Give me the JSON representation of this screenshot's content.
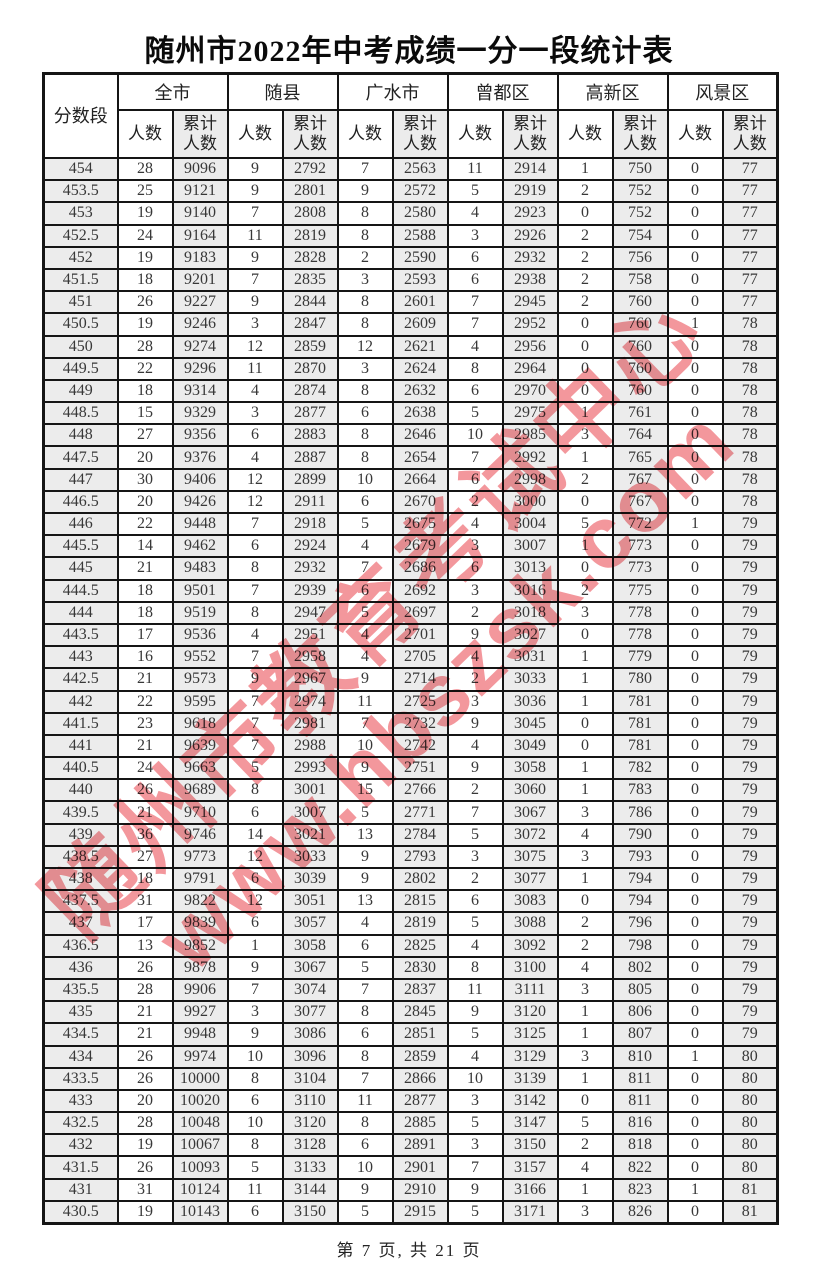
{
  "title": "随州市2022年中考成绩一分一段统计表",
  "footer": "第 7 页, 共 21 页",
  "watermark": {
    "line1": "随州市教育考试中心",
    "line2": "www.hbszsk.com",
    "color": "#ee6e76"
  },
  "table": {
    "score_header": "分数段",
    "count_header": "人数",
    "cum_header": "累计人数",
    "regions": [
      {
        "label": "全市"
      },
      {
        "label": "随县"
      },
      {
        "label": "广水市"
      },
      {
        "label": "曾都区"
      },
      {
        "label": "高新区"
      },
      {
        "label": "风景区"
      }
    ],
    "rows": [
      [
        "454",
        28,
        9096,
        9,
        2792,
        7,
        2563,
        11,
        2914,
        1,
        750,
        0,
        77
      ],
      [
        "453.5",
        25,
        9121,
        9,
        2801,
        9,
        2572,
        5,
        2919,
        2,
        752,
        0,
        77
      ],
      [
        "453",
        19,
        9140,
        7,
        2808,
        8,
        2580,
        4,
        2923,
        0,
        752,
        0,
        77
      ],
      [
        "452.5",
        24,
        9164,
        11,
        2819,
        8,
        2588,
        3,
        2926,
        2,
        754,
        0,
        77
      ],
      [
        "452",
        19,
        9183,
        9,
        2828,
        2,
        2590,
        6,
        2932,
        2,
        756,
        0,
        77
      ],
      [
        "451.5",
        18,
        9201,
        7,
        2835,
        3,
        2593,
        6,
        2938,
        2,
        758,
        0,
        77
      ],
      [
        "451",
        26,
        9227,
        9,
        2844,
        8,
        2601,
        7,
        2945,
        2,
        760,
        0,
        77
      ],
      [
        "450.5",
        19,
        9246,
        3,
        2847,
        8,
        2609,
        7,
        2952,
        0,
        760,
        1,
        78
      ],
      [
        "450",
        28,
        9274,
        12,
        2859,
        12,
        2621,
        4,
        2956,
        0,
        760,
        0,
        78
      ],
      [
        "449.5",
        22,
        9296,
        11,
        2870,
        3,
        2624,
        8,
        2964,
        0,
        760,
        0,
        78
      ],
      [
        "449",
        18,
        9314,
        4,
        2874,
        8,
        2632,
        6,
        2970,
        0,
        760,
        0,
        78
      ],
      [
        "448.5",
        15,
        9329,
        3,
        2877,
        6,
        2638,
        5,
        2975,
        1,
        761,
        0,
        78
      ],
      [
        "448",
        27,
        9356,
        6,
        2883,
        8,
        2646,
        10,
        2985,
        3,
        764,
        0,
        78
      ],
      [
        "447.5",
        20,
        9376,
        4,
        2887,
        8,
        2654,
        7,
        2992,
        1,
        765,
        0,
        78
      ],
      [
        "447",
        30,
        9406,
        12,
        2899,
        10,
        2664,
        6,
        2998,
        2,
        767,
        0,
        78
      ],
      [
        "446.5",
        20,
        9426,
        12,
        2911,
        6,
        2670,
        2,
        3000,
        0,
        767,
        0,
        78
      ],
      [
        "446",
        22,
        9448,
        7,
        2918,
        5,
        2675,
        4,
        3004,
        5,
        772,
        1,
        79
      ],
      [
        "445.5",
        14,
        9462,
        6,
        2924,
        4,
        2679,
        3,
        3007,
        1,
        773,
        0,
        79
      ],
      [
        "445",
        21,
        9483,
        8,
        2932,
        7,
        2686,
        6,
        3013,
        0,
        773,
        0,
        79
      ],
      [
        "444.5",
        18,
        9501,
        7,
        2939,
        6,
        2692,
        3,
        3016,
        2,
        775,
        0,
        79
      ],
      [
        "444",
        18,
        9519,
        8,
        2947,
        5,
        2697,
        2,
        3018,
        3,
        778,
        0,
        79
      ],
      [
        "443.5",
        17,
        9536,
        4,
        2951,
        4,
        2701,
        9,
        3027,
        0,
        778,
        0,
        79
      ],
      [
        "443",
        16,
        9552,
        7,
        2958,
        4,
        2705,
        4,
        3031,
        1,
        779,
        0,
        79
      ],
      [
        "442.5",
        21,
        9573,
        9,
        2967,
        9,
        2714,
        2,
        3033,
        1,
        780,
        0,
        79
      ],
      [
        "442",
        22,
        9595,
        7,
        2974,
        11,
        2725,
        3,
        3036,
        1,
        781,
        0,
        79
      ],
      [
        "441.5",
        23,
        9618,
        7,
        2981,
        7,
        2732,
        9,
        3045,
        0,
        781,
        0,
        79
      ],
      [
        "441",
        21,
        9639,
        7,
        2988,
        10,
        2742,
        4,
        3049,
        0,
        781,
        0,
        79
      ],
      [
        "440.5",
        24,
        9663,
        5,
        2993,
        9,
        2751,
        9,
        3058,
        1,
        782,
        0,
        79
      ],
      [
        "440",
        26,
        9689,
        8,
        3001,
        15,
        2766,
        2,
        3060,
        1,
        783,
        0,
        79
      ],
      [
        "439.5",
        21,
        9710,
        6,
        3007,
        5,
        2771,
        7,
        3067,
        3,
        786,
        0,
        79
      ],
      [
        "439",
        36,
        9746,
        14,
        3021,
        13,
        2784,
        5,
        3072,
        4,
        790,
        0,
        79
      ],
      [
        "438.5",
        27,
        9773,
        12,
        3033,
        9,
        2793,
        3,
        3075,
        3,
        793,
        0,
        79
      ],
      [
        "438",
        18,
        9791,
        6,
        3039,
        9,
        2802,
        2,
        3077,
        1,
        794,
        0,
        79
      ],
      [
        "437.5",
        31,
        9822,
        12,
        3051,
        13,
        2815,
        6,
        3083,
        0,
        794,
        0,
        79
      ],
      [
        "437",
        17,
        9839,
        6,
        3057,
        4,
        2819,
        5,
        3088,
        2,
        796,
        0,
        79
      ],
      [
        "436.5",
        13,
        9852,
        1,
        3058,
        6,
        2825,
        4,
        3092,
        2,
        798,
        0,
        79
      ],
      [
        "436",
        26,
        9878,
        9,
        3067,
        5,
        2830,
        8,
        3100,
        4,
        802,
        0,
        79
      ],
      [
        "435.5",
        28,
        9906,
        7,
        3074,
        7,
        2837,
        11,
        3111,
        3,
        805,
        0,
        79
      ],
      [
        "435",
        21,
        9927,
        3,
        3077,
        8,
        2845,
        9,
        3120,
        1,
        806,
        0,
        79
      ],
      [
        "434.5",
        21,
        9948,
        9,
        3086,
        6,
        2851,
        5,
        3125,
        1,
        807,
        0,
        79
      ],
      [
        "434",
        26,
        9974,
        10,
        3096,
        8,
        2859,
        4,
        3129,
        3,
        810,
        1,
        80
      ],
      [
        "433.5",
        26,
        10000,
        8,
        3104,
        7,
        2866,
        10,
        3139,
        1,
        811,
        0,
        80
      ],
      [
        "433",
        20,
        10020,
        6,
        3110,
        11,
        2877,
        3,
        3142,
        0,
        811,
        0,
        80
      ],
      [
        "432.5",
        28,
        10048,
        10,
        3120,
        8,
        2885,
        5,
        3147,
        5,
        816,
        0,
        80
      ],
      [
        "432",
        19,
        10067,
        8,
        3128,
        6,
        2891,
        3,
        3150,
        2,
        818,
        0,
        80
      ],
      [
        "431.5",
        26,
        10093,
        5,
        3133,
        10,
        2901,
        7,
        3157,
        4,
        822,
        0,
        80
      ],
      [
        "431",
        31,
        10124,
        11,
        3144,
        9,
        2910,
        9,
        3166,
        1,
        823,
        1,
        81
      ],
      [
        "430.5",
        19,
        10143,
        6,
        3150,
        5,
        2915,
        5,
        3171,
        3,
        826,
        0,
        81
      ]
    ]
  }
}
